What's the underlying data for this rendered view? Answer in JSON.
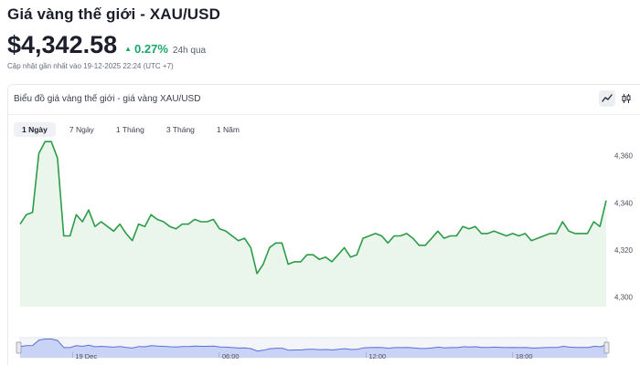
{
  "header": {
    "title": "Giá vàng thế giới - XAU/USD",
    "price": "$4,342.58",
    "change": "0.27%",
    "change_period": "24h qua",
    "updated": "Cập nhật gần nhất vào 19-12-2025 22:24 (UTC +7)"
  },
  "chart": {
    "heading": "Biểu đồ giá vàng thế giới - giá vàng XAU/USD",
    "mode_icons": [
      "line-chart-icon",
      "candlestick-icon"
    ],
    "tabs": [
      {
        "label": "1 Ngày",
        "active": true
      },
      {
        "label": "7 Ngày",
        "active": false
      },
      {
        "label": "1 Tháng",
        "active": false
      },
      {
        "label": "3 Tháng",
        "active": false
      },
      {
        "label": "1 Năm",
        "active": false
      }
    ],
    "colors": {
      "line": "#2d9b47",
      "area": "#eaf6ec",
      "navigator_fill": "#c9d3f5",
      "navigator_line": "#5b6fd6",
      "up": "#1aa76b"
    }
  },
  "chart_data": {
    "type": "area",
    "title": "",
    "xlabel": "",
    "ylabel": "",
    "ylim": [
      4296,
      4368
    ],
    "yticks": [
      4300,
      4320,
      4340,
      4360
    ],
    "ytick_labels": [
      "4,300",
      "4,320",
      "4,340",
      "4,360"
    ],
    "x_labels": [
      "19 Dec",
      "06:00",
      "12:00",
      "18:00"
    ],
    "series": [
      {
        "values": [
          4331,
          4335,
          4336,
          4361,
          4366,
          4366,
          4359,
          4326,
          4326,
          4335,
          4332,
          4337,
          4330,
          4332,
          4330,
          4328,
          4331,
          4327,
          4324,
          4331,
          4330,
          4335,
          4333,
          4332,
          4330,
          4329,
          4331,
          4331,
          4333,
          4332,
          4332,
          4333,
          4329,
          4328,
          4326,
          4324,
          4325,
          4321,
          4310,
          4314,
          4321,
          4323,
          4323,
          4314,
          4315,
          4315,
          4318,
          4318,
          4316,
          4317,
          4315,
          4318,
          4321,
          4317,
          4318,
          4325,
          4326,
          4327,
          4326,
          4323,
          4326,
          4326,
          4327,
          4325,
          4322,
          4322,
          4325,
          4328,
          4325,
          4326,
          4326,
          4330,
          4329,
          4330,
          4327,
          4327,
          4328,
          4327,
          4326,
          4327,
          4326,
          4327,
          4324,
          4325,
          4326,
          4327,
          4327,
          4332,
          4328,
          4327,
          4327,
          4327,
          4332,
          4330,
          4341
        ]
      }
    ]
  }
}
